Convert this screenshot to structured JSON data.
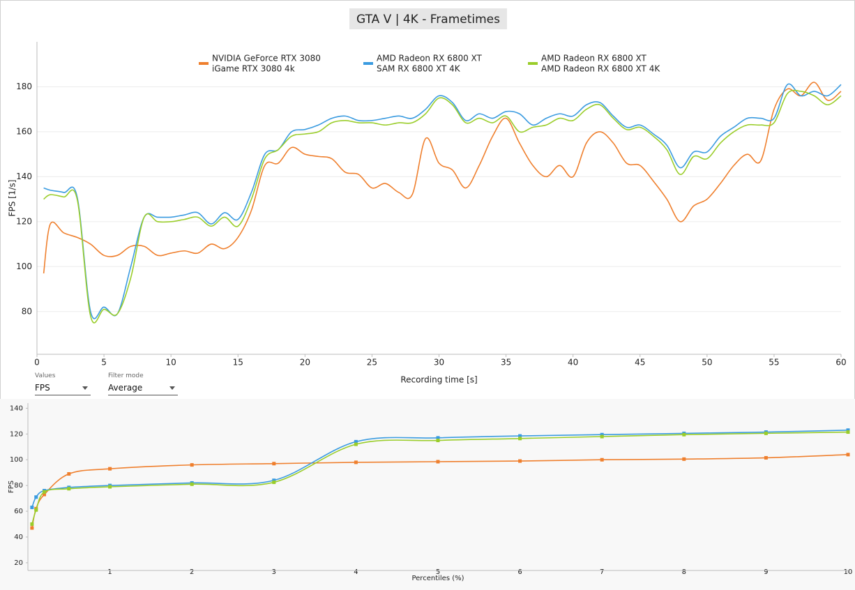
{
  "chart_data": [
    {
      "type": "line",
      "title": "GTA V | 4K - Frametimes",
      "xlabel": "Recording time [s]",
      "ylabel": "FPS [1/s]",
      "x": [
        0.5,
        1,
        2,
        3,
        4,
        5,
        6,
        7,
        8,
        9,
        10,
        11,
        12,
        13,
        14,
        15,
        16,
        17,
        18,
        19,
        20,
        21,
        22,
        23,
        24,
        25,
        26,
        27,
        28,
        29,
        30,
        31,
        32,
        33,
        34,
        35,
        36,
        37,
        38,
        39,
        40,
        41,
        42,
        43,
        44,
        45,
        46,
        47,
        48,
        49,
        50,
        51,
        52,
        53,
        54,
        55,
        56,
        57,
        58,
        59,
        60
      ],
      "xlim": [
        0,
        60
      ],
      "xticks": [
        0,
        5,
        10,
        15,
        20,
        25,
        30,
        35,
        40,
        45,
        50,
        55,
        60
      ],
      "ylim": [
        61,
        200
      ],
      "yticks": [
        80,
        100,
        120,
        140,
        160,
        180
      ],
      "grid": true,
      "smooth": true,
      "series": [
        {
          "gpu": "NVIDIA GeForce RTX 3080",
          "name": "iGame RTX 3080 4k",
          "color": "#ef7f2d",
          "values": [
            97,
            119,
            115,
            113,
            110,
            105,
            105,
            109,
            109,
            105,
            106,
            107,
            106,
            110,
            108,
            113,
            125,
            145,
            146,
            153,
            150,
            149,
            148,
            142,
            141,
            135,
            137,
            133,
            132,
            157,
            146,
            143,
            135,
            145,
            158,
            166,
            155,
            145,
            140,
            145,
            140,
            155,
            160,
            155,
            146,
            145,
            138,
            130,
            120,
            127,
            130,
            137,
            145,
            150,
            147,
            170,
            179,
            176,
            182,
            174,
            178
          ]
        },
        {
          "gpu": "AMD Radeon RX 6800 XT",
          "name": "SAM RX 6800 XT 4K",
          "color": "#3a9be0",
          "values": [
            135,
            134,
            133,
            131,
            80,
            82,
            79,
            100,
            122,
            122,
            122,
            123,
            124,
            119,
            124,
            121,
            133,
            150,
            152,
            160,
            161,
            163,
            166,
            167,
            165,
            165,
            166,
            167,
            166,
            170,
            176,
            173,
            165,
            168,
            166,
            169,
            168,
            163,
            166,
            168,
            167,
            172,
            173,
            167,
            162,
            163,
            159,
            154,
            144,
            151,
            151,
            158,
            162,
            166,
            166,
            166,
            181,
            176,
            178,
            176,
            181
          ]
        },
        {
          "gpu": "AMD Radeon RX 6800 XT",
          "name": "AMD Radeon RX 6800 XT 4K",
          "color": "#9acd2a",
          "values": [
            130,
            132,
            131,
            130,
            78,
            81,
            79,
            95,
            122,
            120,
            120,
            121,
            122,
            118,
            122,
            118,
            130,
            148,
            152,
            158,
            159,
            160,
            164,
            165,
            164,
            164,
            163,
            164,
            164,
            168,
            175,
            172,
            164,
            166,
            164,
            167,
            160,
            162,
            163,
            166,
            165,
            170,
            172,
            166,
            161,
            162,
            158,
            152,
            141,
            149,
            148,
            155,
            160,
            163,
            163,
            164,
            177,
            178,
            176,
            172,
            176
          ]
        }
      ]
    },
    {
      "type": "line",
      "xlabel": "Percentiles (%)",
      "ylabel": "FPS",
      "x": [
        0.05,
        0.1,
        0.2,
        0.5,
        1,
        2,
        3,
        4,
        5,
        6,
        7,
        8,
        9,
        10
      ],
      "xlim": [
        0,
        10
      ],
      "xticks": [
        1,
        2,
        3,
        4,
        5,
        6,
        7,
        8,
        9,
        10
      ],
      "ylim": [
        14,
        144
      ],
      "yticks": [
        20,
        40,
        60,
        80,
        100,
        120,
        140
      ],
      "grid": false,
      "smooth": true,
      "markers": true,
      "series": [
        {
          "color": "#ef7f2d",
          "values": [
            47,
            62,
            73,
            89,
            93,
            96,
            97,
            98,
            98.5,
            99,
            100,
            100.5,
            101.5,
            104
          ]
        },
        {
          "color": "#3a9be0",
          "values": [
            63,
            71,
            76,
            78.5,
            80,
            82,
            84,
            114,
            117,
            118.5,
            119.5,
            120.5,
            121.5,
            123
          ]
        },
        {
          "color": "#9acd2a",
          "values": [
            50,
            61,
            75,
            77.5,
            79,
            81,
            82.5,
            112,
            115,
            116.5,
            118,
            119.5,
            120.5,
            121.5
          ]
        }
      ]
    }
  ],
  "controls": [
    {
      "label": "Values",
      "value": "FPS"
    },
    {
      "label": "Filter mode",
      "value": "Average"
    }
  ]
}
